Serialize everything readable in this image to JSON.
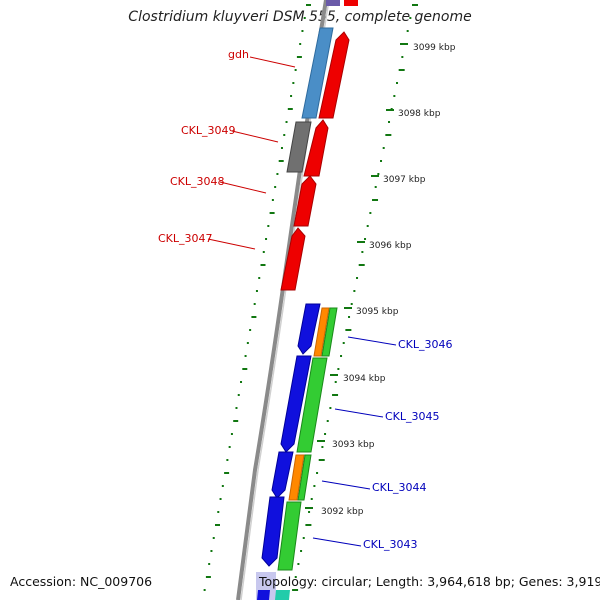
{
  "title": "Clostridium kluyveri DSM 555, complete genome",
  "accession": "Accession: NC_009706",
  "topology": "Topology: circular; Length: 3,964,618 bp; Genes: 3,919",
  "colors": {
    "forward_cds": "#ee0000",
    "forward_other": "#4a8ec7",
    "forward_pseudo": "#707070",
    "reverse_cds": "#1010dd",
    "reverse_green": "#33cc33",
    "reverse_orange": "#ff8800",
    "backbone": "#888888",
    "tick": "#117711",
    "label_forward": "#cc0000",
    "label_reverse": "#0000bb"
  },
  "ticks": [
    "3099 kbp",
    "3098 kbp",
    "3097 kbp",
    "3096 kbp",
    "3095 kbp",
    "3094 kbp",
    "3093 kbp",
    "3092 kbp"
  ],
  "forward_genes": [
    "gdh",
    "CKL_3049",
    "CKL_3048",
    "CKL_3047"
  ],
  "reverse_genes": [
    "CKL_3046",
    "CKL_3045",
    "CKL_3044",
    "CKL_3043"
  ]
}
